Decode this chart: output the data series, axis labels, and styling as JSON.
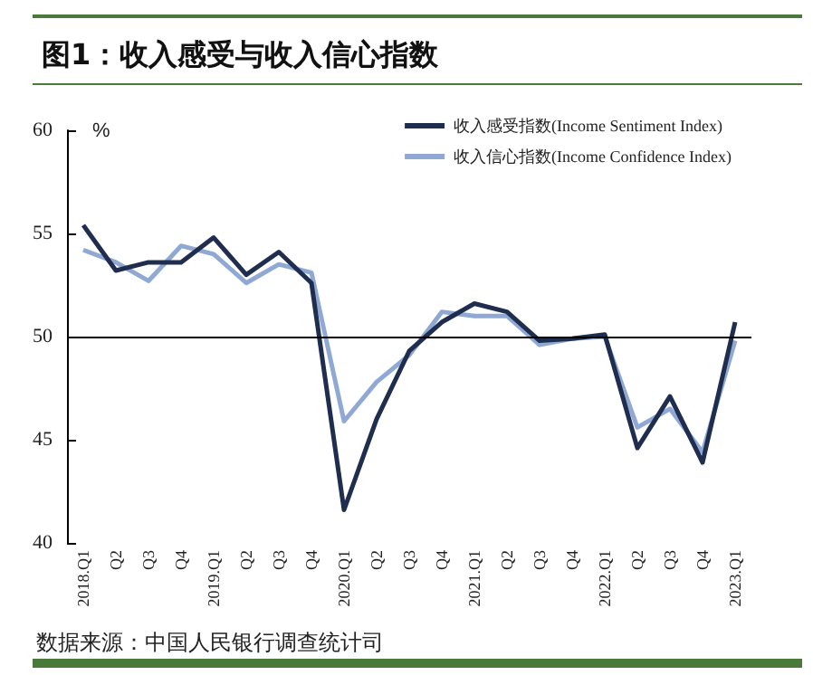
{
  "chart_data": {
    "type": "line",
    "title": "图1：收入感受与收入信心指数",
    "ylabel": "%",
    "categories": [
      "2018.Q1",
      "Q2",
      "Q3",
      "Q4",
      "2019.Q1",
      "Q2",
      "Q3",
      "Q4",
      "2020.Q1",
      "Q2",
      "Q3",
      "Q4",
      "2021.Q1",
      "Q2",
      "Q3",
      "Q4",
      "2022.Q1",
      "Q2",
      "Q3",
      "Q4",
      "2023.Q1"
    ],
    "series": [
      {
        "name": "收入感受指数(Income Sentiment Index)",
        "color": "#1f2d4f",
        "values": [
          55.4,
          53.2,
          53.6,
          53.6,
          54.8,
          53.0,
          54.1,
          52.6,
          41.6,
          46.0,
          49.3,
          50.7,
          51.6,
          51.2,
          49.8,
          49.9,
          50.1,
          44.6,
          47.1,
          43.9,
          50.7
        ]
      },
      {
        "name": "收入信心指数(Income Confidence Index)",
        "color": "#8fa9d4",
        "values": [
          54.2,
          53.6,
          52.7,
          54.4,
          54.0,
          52.6,
          53.5,
          53.1,
          45.9,
          47.8,
          49.1,
          51.2,
          51.0,
          51.0,
          49.6,
          49.9,
          50.0,
          45.6,
          46.5,
          44.4,
          49.8
        ]
      }
    ],
    "ylim": [
      40,
      60
    ],
    "yticks": [
      40,
      45,
      50,
      55,
      60
    ],
    "grid": false,
    "legend": "top right",
    "marker": "none",
    "line_style": "solid",
    "ref_lines": [
      {
        "axis": "y",
        "value": 50,
        "label": null,
        "color": "#000000"
      }
    ],
    "annotations": [
      "数据来源：中国人民银行调查统计司"
    ]
  }
}
